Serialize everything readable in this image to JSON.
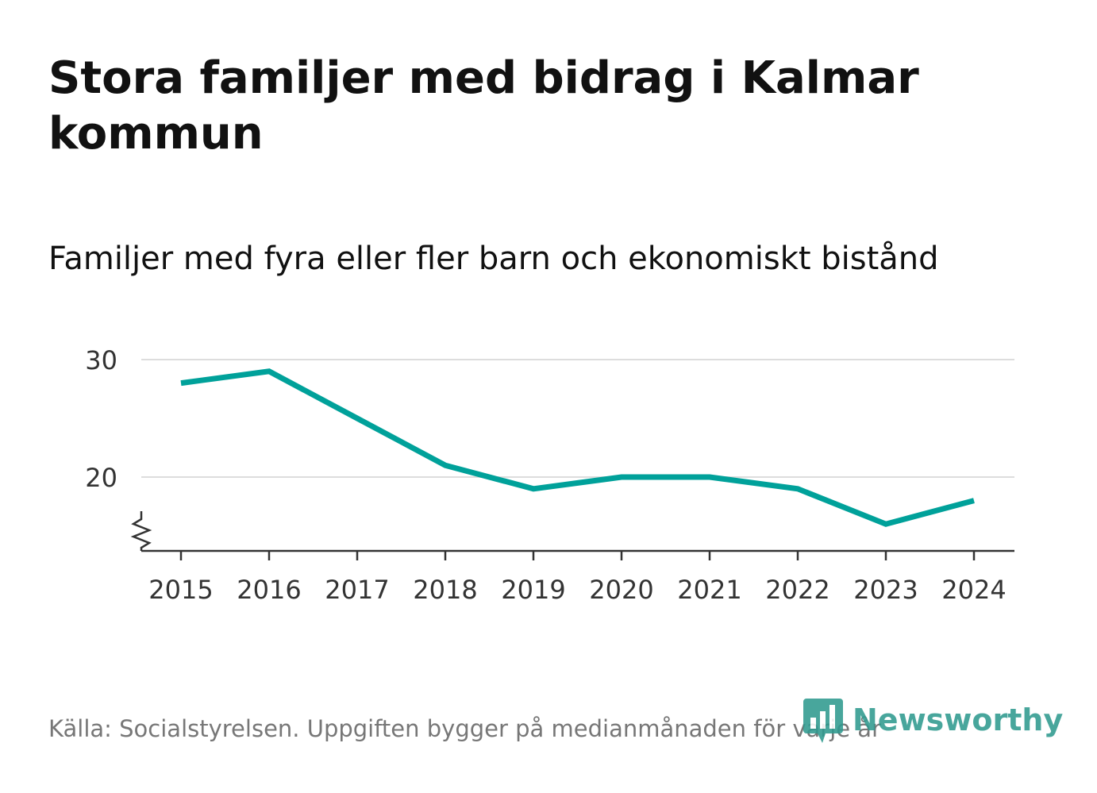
{
  "title": "Stora familjer med bidrag i Kalmar kommun",
  "subtitle": "Familjer med fyra eller fler barn och ekonomiskt bistånd",
  "source": "Källa: Socialstyrelsen. Uppgiften bygger på medianmånaden för varje år",
  "brand": {
    "name": "Newsworthy",
    "icon": "newsworthy-logo-icon",
    "color": "#2f9a8f"
  },
  "chart_data": {
    "type": "line",
    "title": "Stora familjer med bidrag i Kalmar kommun",
    "subtitle": "Familjer med fyra eller fler barn och ekonomiskt bistånd",
    "xlabel": "",
    "ylabel": "",
    "categories": [
      "2015",
      "2016",
      "2017",
      "2018",
      "2019",
      "2020",
      "2021",
      "2022",
      "2023",
      "2024"
    ],
    "series": [
      {
        "name": "Familjer med fyra eller fler barn och ekonomiskt bistånd",
        "values": [
          28,
          29,
          25,
          21,
          19,
          20,
          20,
          19,
          16,
          18
        ],
        "color": "#00a19a"
      }
    ],
    "yticks": [
      20,
      30
    ],
    "ylim": [
      13.7,
      30
    ],
    "grid": true,
    "axis_break": true,
    "legend": "none"
  }
}
